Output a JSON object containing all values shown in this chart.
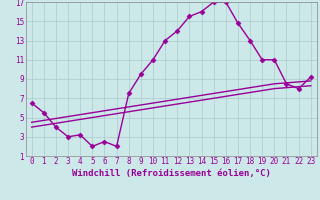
{
  "xlabel": "Windchill (Refroidissement éolien,°C)",
  "bg_color": "#cce8e8",
  "line_color": "#990099",
  "grid_color": "#aacccc",
  "xlim": [
    -0.5,
    23.5
  ],
  "ylim": [
    1,
    17
  ],
  "xticks": [
    0,
    1,
    2,
    3,
    4,
    5,
    6,
    7,
    8,
    9,
    10,
    11,
    12,
    13,
    14,
    15,
    16,
    17,
    18,
    19,
    20,
    21,
    22,
    23
  ],
  "yticks": [
    1,
    3,
    5,
    7,
    9,
    11,
    13,
    15,
    17
  ],
  "line1_x": [
    0,
    1,
    2,
    3,
    4,
    5,
    6,
    7,
    8,
    9,
    10,
    11,
    12,
    13,
    14,
    15,
    16,
    17,
    18,
    19,
    20,
    21,
    22,
    23
  ],
  "line1_y": [
    6.5,
    5.5,
    4.0,
    3.0,
    3.2,
    2.0,
    2.5,
    2.0,
    7.5,
    9.5,
    11.0,
    13.0,
    14.0,
    15.5,
    16.0,
    17.0,
    17.0,
    14.8,
    13.0,
    11.0,
    11.0,
    8.5,
    8.0,
    9.2
  ],
  "line2_x": [
    0,
    1,
    2,
    3,
    4,
    5,
    6,
    7,
    8,
    9,
    10,
    11,
    12,
    13,
    14,
    15,
    16,
    17,
    18,
    19,
    20,
    21,
    22,
    23
  ],
  "line2_y": [
    4.5,
    4.7,
    4.9,
    5.1,
    5.3,
    5.5,
    5.7,
    5.9,
    6.1,
    6.3,
    6.5,
    6.7,
    6.9,
    7.1,
    7.3,
    7.5,
    7.7,
    7.9,
    8.1,
    8.3,
    8.5,
    8.6,
    8.7,
    8.8
  ],
  "line3_x": [
    0,
    1,
    2,
    3,
    4,
    5,
    6,
    7,
    8,
    9,
    10,
    11,
    12,
    13,
    14,
    15,
    16,
    17,
    18,
    19,
    20,
    21,
    22,
    23
  ],
  "line3_y": [
    4.0,
    4.2,
    4.4,
    4.6,
    4.8,
    5.0,
    5.2,
    5.4,
    5.6,
    5.8,
    6.0,
    6.2,
    6.4,
    6.6,
    6.8,
    7.0,
    7.2,
    7.4,
    7.6,
    7.8,
    8.0,
    8.1,
    8.2,
    8.3
  ],
  "marker": "D",
  "markersize": 2.5,
  "linewidth": 1.0,
  "tick_fontsize": 5.5,
  "xlabel_fontsize": 6.5
}
